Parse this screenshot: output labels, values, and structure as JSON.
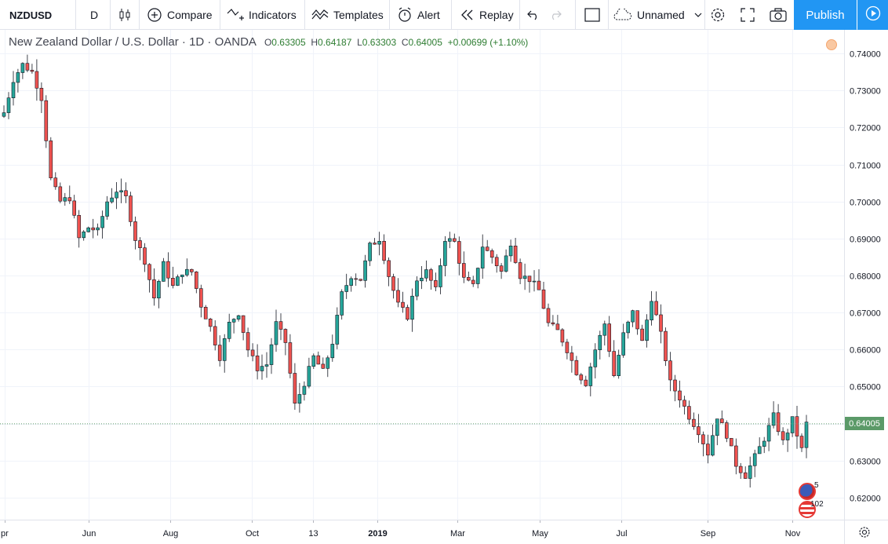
{
  "toolbar": {
    "symbol": "NZDUSD",
    "interval": "D",
    "compare": "Compare",
    "indicators": "Indicators",
    "templates": "Templates",
    "alert": "Alert",
    "replay": "Replay",
    "layout_name": "Unnamed",
    "publish": "Publish"
  },
  "legend": {
    "title": "New Zealand Dollar / U.S. Dollar · 1D · OANDA",
    "open_label": "O",
    "open": "0.63305",
    "high_label": "H",
    "high": "0.64187",
    "low_label": "L",
    "low": "0.63303",
    "close_label": "C",
    "close": "0.64005",
    "change": "+0.00699 (+1.10%)"
  },
  "last_price": "0.64005",
  "events": {
    "nz_count": "5",
    "us_count": "102"
  },
  "colors": {
    "up": "#26a69a",
    "down": "#ef5350",
    "candle_outline": "#131722",
    "accent": "#2196f3",
    "last_price": "#5b9a68"
  },
  "chart_data": {
    "type": "candlestick",
    "title": "New Zealand Dollar / U.S. Dollar · 1D · OANDA",
    "xlabel": "",
    "ylabel": "",
    "ylim": [
      0.615,
      0.743
    ],
    "grid": true,
    "x_tick_labels": [
      "Apr",
      "Jun",
      "Aug",
      "Oct",
      "13",
      "2019",
      "Mar",
      "May",
      "Jul",
      "Sep",
      "Nov"
    ],
    "y_tick_labels": [
      "0.74000",
      "0.73000",
      "0.72000",
      "0.71000",
      "0.70000",
      "0.69000",
      "0.68000",
      "0.67000",
      "0.66000",
      "0.65000",
      "0.64000",
      "0.63000",
      "0.62000"
    ],
    "close_path": [
      [
        0,
        0.724
      ],
      [
        2,
        0.733
      ],
      [
        4,
        0.737
      ],
      [
        6,
        0.735
      ],
      [
        8,
        0.728
      ],
      [
        10,
        0.706
      ],
      [
        12,
        0.7
      ],
      [
        14,
        0.701
      ],
      [
        16,
        0.69
      ],
      [
        18,
        0.693
      ],
      [
        20,
        0.692
      ],
      [
        22,
        0.7
      ],
      [
        24,
        0.703
      ],
      [
        26,
        0.701
      ],
      [
        28,
        0.69
      ],
      [
        30,
        0.684
      ],
      [
        32,
        0.674
      ],
      [
        34,
        0.683
      ],
      [
        36,
        0.677
      ],
      [
        38,
        0.681
      ],
      [
        40,
        0.681
      ],
      [
        42,
        0.672
      ],
      [
        44,
        0.666
      ],
      [
        46,
        0.658
      ],
      [
        48,
        0.667
      ],
      [
        50,
        0.67
      ],
      [
        52,
        0.66
      ],
      [
        54,
        0.655
      ],
      [
        56,
        0.656
      ],
      [
        58,
        0.667
      ],
      [
        60,
        0.662
      ],
      [
        62,
        0.645
      ],
      [
        64,
        0.651
      ],
      [
        66,
        0.658
      ],
      [
        68,
        0.654
      ],
      [
        70,
        0.662
      ],
      [
        72,
        0.675
      ],
      [
        74,
        0.68
      ],
      [
        76,
        0.679
      ],
      [
        78,
        0.688
      ],
      [
        80,
        0.69
      ],
      [
        82,
        0.68
      ],
      [
        84,
        0.672
      ],
      [
        86,
        0.669
      ],
      [
        88,
        0.679
      ],
      [
        90,
        0.681
      ],
      [
        92,
        0.676
      ],
      [
        94,
        0.69
      ],
      [
        96,
        0.689
      ],
      [
        98,
        0.679
      ],
      [
        100,
        0.677
      ],
      [
        102,
        0.688
      ],
      [
        104,
        0.685
      ],
      [
        106,
        0.681
      ],
      [
        108,
        0.689
      ],
      [
        110,
        0.68
      ],
      [
        112,
        0.679
      ],
      [
        114,
        0.676
      ],
      [
        116,
        0.667
      ],
      [
        118,
        0.665
      ],
      [
        120,
        0.66
      ],
      [
        122,
        0.654
      ],
      [
        124,
        0.651
      ],
      [
        126,
        0.66
      ],
      [
        128,
        0.667
      ],
      [
        130,
        0.653
      ],
      [
        132,
        0.664
      ],
      [
        134,
        0.67
      ],
      [
        136,
        0.662
      ],
      [
        138,
        0.674
      ],
      [
        140,
        0.664
      ],
      [
        142,
        0.651
      ],
      [
        144,
        0.647
      ],
      [
        146,
        0.642
      ],
      [
        148,
        0.638
      ],
      [
        150,
        0.632
      ],
      [
        152,
        0.642
      ],
      [
        154,
        0.637
      ],
      [
        156,
        0.629
      ],
      [
        158,
        0.626
      ],
      [
        160,
        0.631
      ],
      [
        162,
        0.636
      ],
      [
        164,
        0.642
      ],
      [
        166,
        0.635
      ],
      [
        168,
        0.641
      ],
      [
        170,
        0.633
      ],
      [
        171,
        0.64
      ]
    ]
  }
}
